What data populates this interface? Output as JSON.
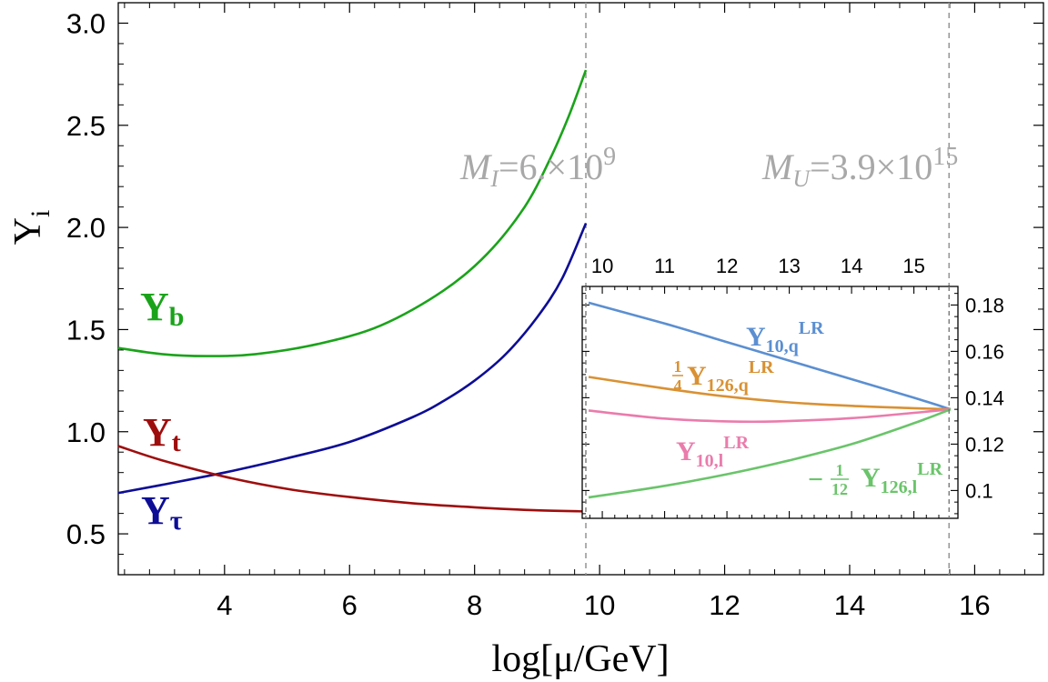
{
  "chart_data": [
    {
      "type": "line",
      "xlabel": "log[μ/GeV]",
      "ylabel": "Y",
      "ylabel_sub": "i",
      "xlim": [
        2.3,
        17.1
      ],
      "ylim": [
        0.3,
        3.1
      ],
      "x_ticks": [
        4,
        6,
        8,
        10,
        12,
        14,
        16
      ],
      "x_tick_labels": [
        "4",
        "6",
        "8",
        "10",
        "12",
        "14",
        "16"
      ],
      "y_ticks": [
        0.5,
        1.0,
        1.5,
        2.0,
        2.5,
        3.0
      ],
      "y_tick_labels": [
        "0.5",
        "1.0",
        "1.5",
        "2.0",
        "2.5",
        "3.0"
      ],
      "vlines": [
        9.78,
        15.59
      ],
      "annotations": [
        {
          "main": "M",
          "sub": "I",
          "rest": "=6.×10",
          "sup": "9",
          "x": 9.78
        },
        {
          "main": "M",
          "sub": "U",
          "rest": "=3.9×10",
          "sup": "15",
          "x": 15.59
        }
      ],
      "series": [
        {
          "name": "Y",
          "sub": "b",
          "color": "#1aa31a",
          "x": [
            2.3,
            3.0,
            3.7,
            4.5,
            5.5,
            6.5,
            7.5,
            8.2,
            8.8,
            9.2,
            9.5,
            9.78
          ],
          "y": [
            1.41,
            1.38,
            1.37,
            1.38,
            1.43,
            1.52,
            1.69,
            1.87,
            2.1,
            2.33,
            2.54,
            2.77
          ]
        },
        {
          "name": "Y",
          "sub": "τ",
          "color": "#0d0d96",
          "x": [
            2.3,
            3.0,
            4.0,
            5.0,
            6.0,
            7.0,
            7.5,
            8.0,
            8.5,
            9.0,
            9.4,
            9.78
          ],
          "y": [
            0.7,
            0.74,
            0.8,
            0.87,
            0.95,
            1.07,
            1.15,
            1.25,
            1.38,
            1.56,
            1.75,
            2.02
          ]
        },
        {
          "name": "Y",
          "sub": "t",
          "color": "#9e0d0d",
          "x": [
            2.3,
            3.0,
            4.0,
            5.0,
            6.0,
            7.0,
            8.0,
            9.0,
            9.78
          ],
          "y": [
            0.93,
            0.86,
            0.78,
            0.72,
            0.68,
            0.65,
            0.63,
            0.615,
            0.61
          ]
        }
      ]
    },
    {
      "type": "line",
      "inset": true,
      "xlim": [
        9.78,
        15.59
      ],
      "ylim": [
        0.088,
        0.188
      ],
      "x_ticks": [
        10,
        11,
        12,
        13,
        14,
        15
      ],
      "x_tick_labels": [
        "10",
        "11",
        "12",
        "13",
        "14",
        "15"
      ],
      "y_ticks": [
        0.1,
        0.12,
        0.14,
        0.16,
        0.18
      ],
      "y_tick_labels": [
        "0.1",
        "0.12",
        "0.14",
        "0.16",
        "0.18"
      ],
      "series": [
        {
          "label": "Y",
          "sub": "10,q",
          "sup": "LR",
          "coef": "",
          "color": "#5b8fd1",
          "x": [
            9.78,
            11,
            12,
            13,
            14,
            15,
            15.59
          ],
          "y": [
            0.181,
            0.172,
            0.164,
            0.156,
            0.148,
            0.14,
            0.135
          ]
        },
        {
          "label": "Y",
          "sub": "126,q",
          "sup": "LR",
          "coef": "1/4",
          "color": "#d99133",
          "x": [
            9.78,
            11,
            12,
            13,
            14,
            15,
            15.59
          ],
          "y": [
            0.149,
            0.144,
            0.1405,
            0.138,
            0.1365,
            0.1355,
            0.135
          ]
        },
        {
          "label": "Y",
          "sub": "10,l",
          "sup": "LR",
          "coef": "",
          "color": "#ea7cac",
          "x": [
            9.78,
            11,
            12,
            12.8,
            14,
            15,
            15.59
          ],
          "y": [
            0.1345,
            0.131,
            0.1298,
            0.1298,
            0.1312,
            0.1335,
            0.135
          ]
        },
        {
          "label": "Y",
          "sub": "126,l",
          "sup": "LR",
          "coef": "−1/12",
          "color": "#6ac46a",
          "x": [
            9.78,
            11,
            12,
            13,
            14,
            15,
            15.59
          ],
          "y": [
            0.097,
            0.102,
            0.107,
            0.113,
            0.12,
            0.129,
            0.135
          ]
        }
      ]
    }
  ]
}
